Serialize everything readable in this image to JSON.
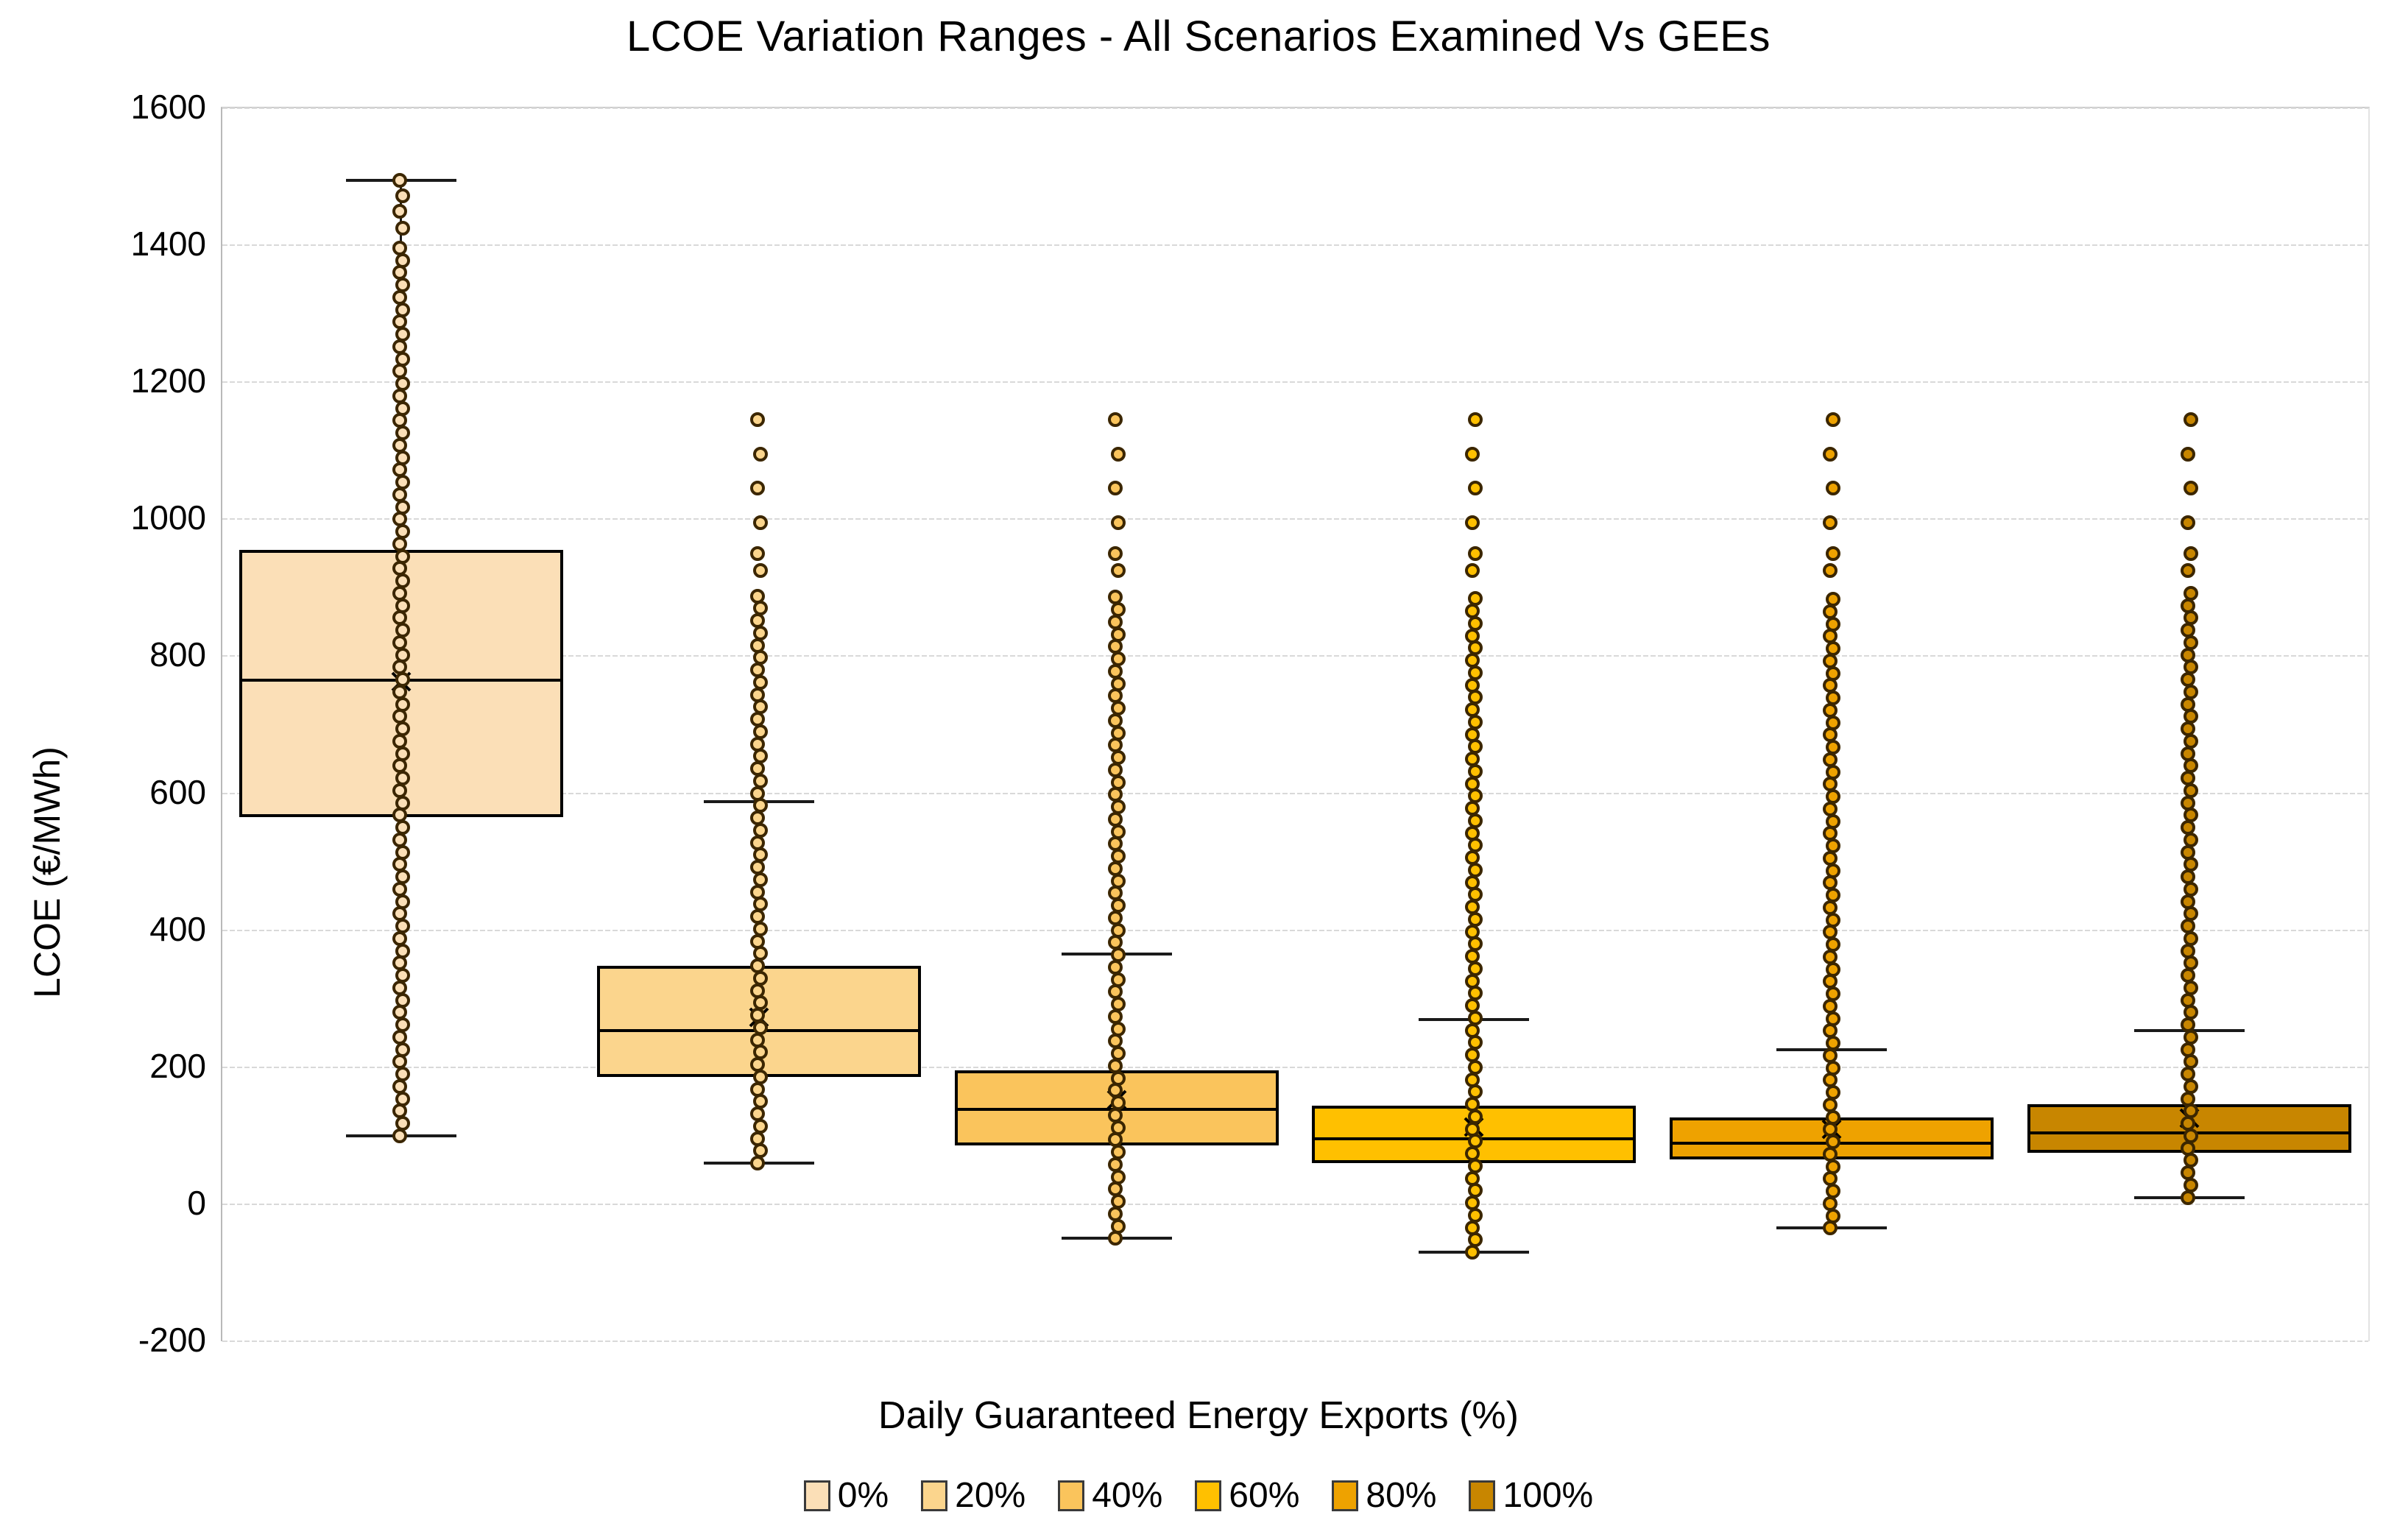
{
  "title": "LCOE Variation Ranges - All Scenarios Examined Vs GEEs",
  "y_axis": {
    "title": "LCOE (€/MWh)",
    "ticks": [
      1600,
      1400,
      1200,
      1000,
      800,
      600,
      400,
      200,
      0,
      -200
    ]
  },
  "x_axis": {
    "title": "Daily Guaranteed Energy Exports (%)"
  },
  "legend": [
    {
      "label": "0%",
      "color": "#FBDFB7"
    },
    {
      "label": "20%",
      "color": "#FBD58D"
    },
    {
      "label": "40%",
      "color": "#FAC45C"
    },
    {
      "label": "60%",
      "color": "#FFC000"
    },
    {
      "label": "80%",
      "color": "#EEA200"
    },
    {
      "label": "100%",
      "color": "#C88600"
    }
  ],
  "chart_data": {
    "type": "box",
    "title": "LCOE Variation Ranges - All Scenarios Examined Vs GEEs",
    "xlabel": "Daily Guaranteed Energy Exports (%)",
    "ylabel": "LCOE (€/MWh)",
    "ylim": [
      -200,
      1600
    ],
    "grid": true,
    "legend_position": "bottom",
    "categories": [
      "0%",
      "20%",
      "40%",
      "60%",
      "80%",
      "100%"
    ],
    "series": [
      {
        "name": "0%",
        "color": "#FBDFB7",
        "min": 100,
        "q1": 565,
        "median": 765,
        "mean": 763,
        "q3": 955,
        "max": 1495,
        "points": {
          "dense_min": 100,
          "dense_max": 1400,
          "step": 18,
          "sparse": [
            1425,
            1450,
            1472,
            1495
          ]
        }
      },
      {
        "name": "20%",
        "color": "#FBD58D",
        "min": 60,
        "q1": 186,
        "median": 254,
        "mean": 273,
        "q3": 348,
        "max": 588,
        "points": {
          "dense_min": 60,
          "dense_max": 900,
          "step": 18,
          "sparse": [
            925,
            950,
            995,
            1045,
            1095,
            1145
          ]
        }
      },
      {
        "name": "40%",
        "color": "#FAC45C",
        "min": -50,
        "q1": 86,
        "median": 139,
        "mean": 152,
        "q3": 196,
        "max": 365,
        "points": {
          "dense_min": -50,
          "dense_max": 900,
          "step": 18,
          "sparse": [
            925,
            950,
            995,
            1045,
            1095,
            1145
          ]
        }
      },
      {
        "name": "60%",
        "color": "#FFC000",
        "min": -70,
        "q1": 60,
        "median": 96,
        "mean": 113,
        "q3": 144,
        "max": 270,
        "points": {
          "dense_min": -70,
          "dense_max": 900,
          "step": 18,
          "sparse": [
            925,
            950,
            995,
            1045,
            1095,
            1145
          ]
        }
      },
      {
        "name": "80%",
        "color": "#EEA200",
        "min": -35,
        "q1": 65,
        "median": 89,
        "mean": 109,
        "q3": 127,
        "max": 226,
        "points": {
          "dense_min": -35,
          "dense_max": 900,
          "step": 18,
          "sparse": [
            925,
            950,
            995,
            1045,
            1095,
            1145
          ]
        }
      },
      {
        "name": "100%",
        "color": "#C88600",
        "min": 10,
        "q1": 75,
        "median": 104,
        "mean": 126,
        "q3": 146,
        "max": 254,
        "points": {
          "dense_min": 10,
          "dense_max": 900,
          "step": 18,
          "sparse": [
            925,
            950,
            995,
            1045,
            1095,
            1145
          ]
        }
      }
    ]
  }
}
